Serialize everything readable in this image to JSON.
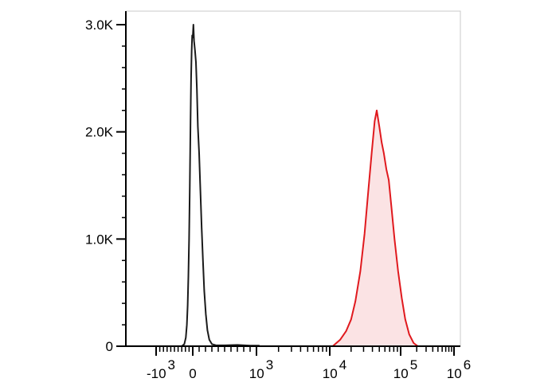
{
  "chart_data": {
    "type": "area",
    "title": "",
    "xlabel": "",
    "ylabel": "",
    "x_scale": "biexponential",
    "xlim": [
      -1000,
      1000000
    ],
    "ylim": [
      0,
      3000
    ],
    "grid": false,
    "legend": "none",
    "y_ticks": [
      {
        "value": 0,
        "label": "0"
      },
      {
        "value": 1000,
        "label": "1.0K"
      },
      {
        "value": 2000,
        "label": "2.0K"
      },
      {
        "value": 3000,
        "label": "3.0K"
      }
    ],
    "x_ticks": [
      {
        "value": -1000,
        "base": "-10",
        "exp": "3"
      },
      {
        "value": 0,
        "base": "0",
        "exp": ""
      },
      {
        "value": 1000,
        "base": "10",
        "exp": "3"
      },
      {
        "value": 10000,
        "base": "10",
        "exp": "4"
      },
      {
        "value": 100000,
        "base": "10",
        "exp": "5"
      },
      {
        "value": 1000000,
        "base": "10",
        "exp": "6"
      }
    ],
    "series": [
      {
        "color": "#1a1a1a",
        "fill": "none",
        "points": [
          [
            -300,
            0
          ],
          [
            -230,
            20
          ],
          [
            -190,
            80
          ],
          [
            -160,
            200
          ],
          [
            -140,
            380
          ],
          [
            -120,
            650
          ],
          [
            -100,
            1000
          ],
          [
            -80,
            1500
          ],
          [
            -60,
            2100
          ],
          [
            -45,
            2500
          ],
          [
            -30,
            2750
          ],
          [
            -15,
            2900
          ],
          [
            0,
            2880
          ],
          [
            10,
            3000
          ],
          [
            20,
            2850
          ],
          [
            35,
            2760
          ],
          [
            50,
            2650
          ],
          [
            65,
            2400
          ],
          [
            80,
            2050
          ],
          [
            100,
            1800
          ],
          [
            120,
            1450
          ],
          [
            140,
            1100
          ],
          [
            160,
            800
          ],
          [
            180,
            520
          ],
          [
            205,
            300
          ],
          [
            230,
            150
          ],
          [
            260,
            60
          ],
          [
            300,
            20
          ],
          [
            360,
            10
          ],
          [
            500,
            8
          ],
          [
            700,
            12
          ],
          [
            900,
            6
          ],
          [
            1100,
            5
          ]
        ]
      },
      {
        "color": "#e0191e",
        "fill": "#fbe3e4",
        "points": [
          [
            11000,
            0
          ],
          [
            14000,
            60
          ],
          [
            17000,
            140
          ],
          [
            20000,
            250
          ],
          [
            23000,
            420
          ],
          [
            27000,
            700
          ],
          [
            31000,
            1050
          ],
          [
            35000,
            1450
          ],
          [
            39000,
            1800
          ],
          [
            43000,
            2100
          ],
          [
            46000,
            2200
          ],
          [
            50000,
            2050
          ],
          [
            54000,
            1900
          ],
          [
            58000,
            1800
          ],
          [
            63000,
            1650
          ],
          [
            68000,
            1550
          ],
          [
            74000,
            1300
          ],
          [
            82000,
            1000
          ],
          [
            92000,
            700
          ],
          [
            105000,
            450
          ],
          [
            122000,
            250
          ],
          [
            145000,
            110
          ],
          [
            175000,
            30
          ],
          [
            210000,
            0
          ]
        ]
      }
    ]
  }
}
